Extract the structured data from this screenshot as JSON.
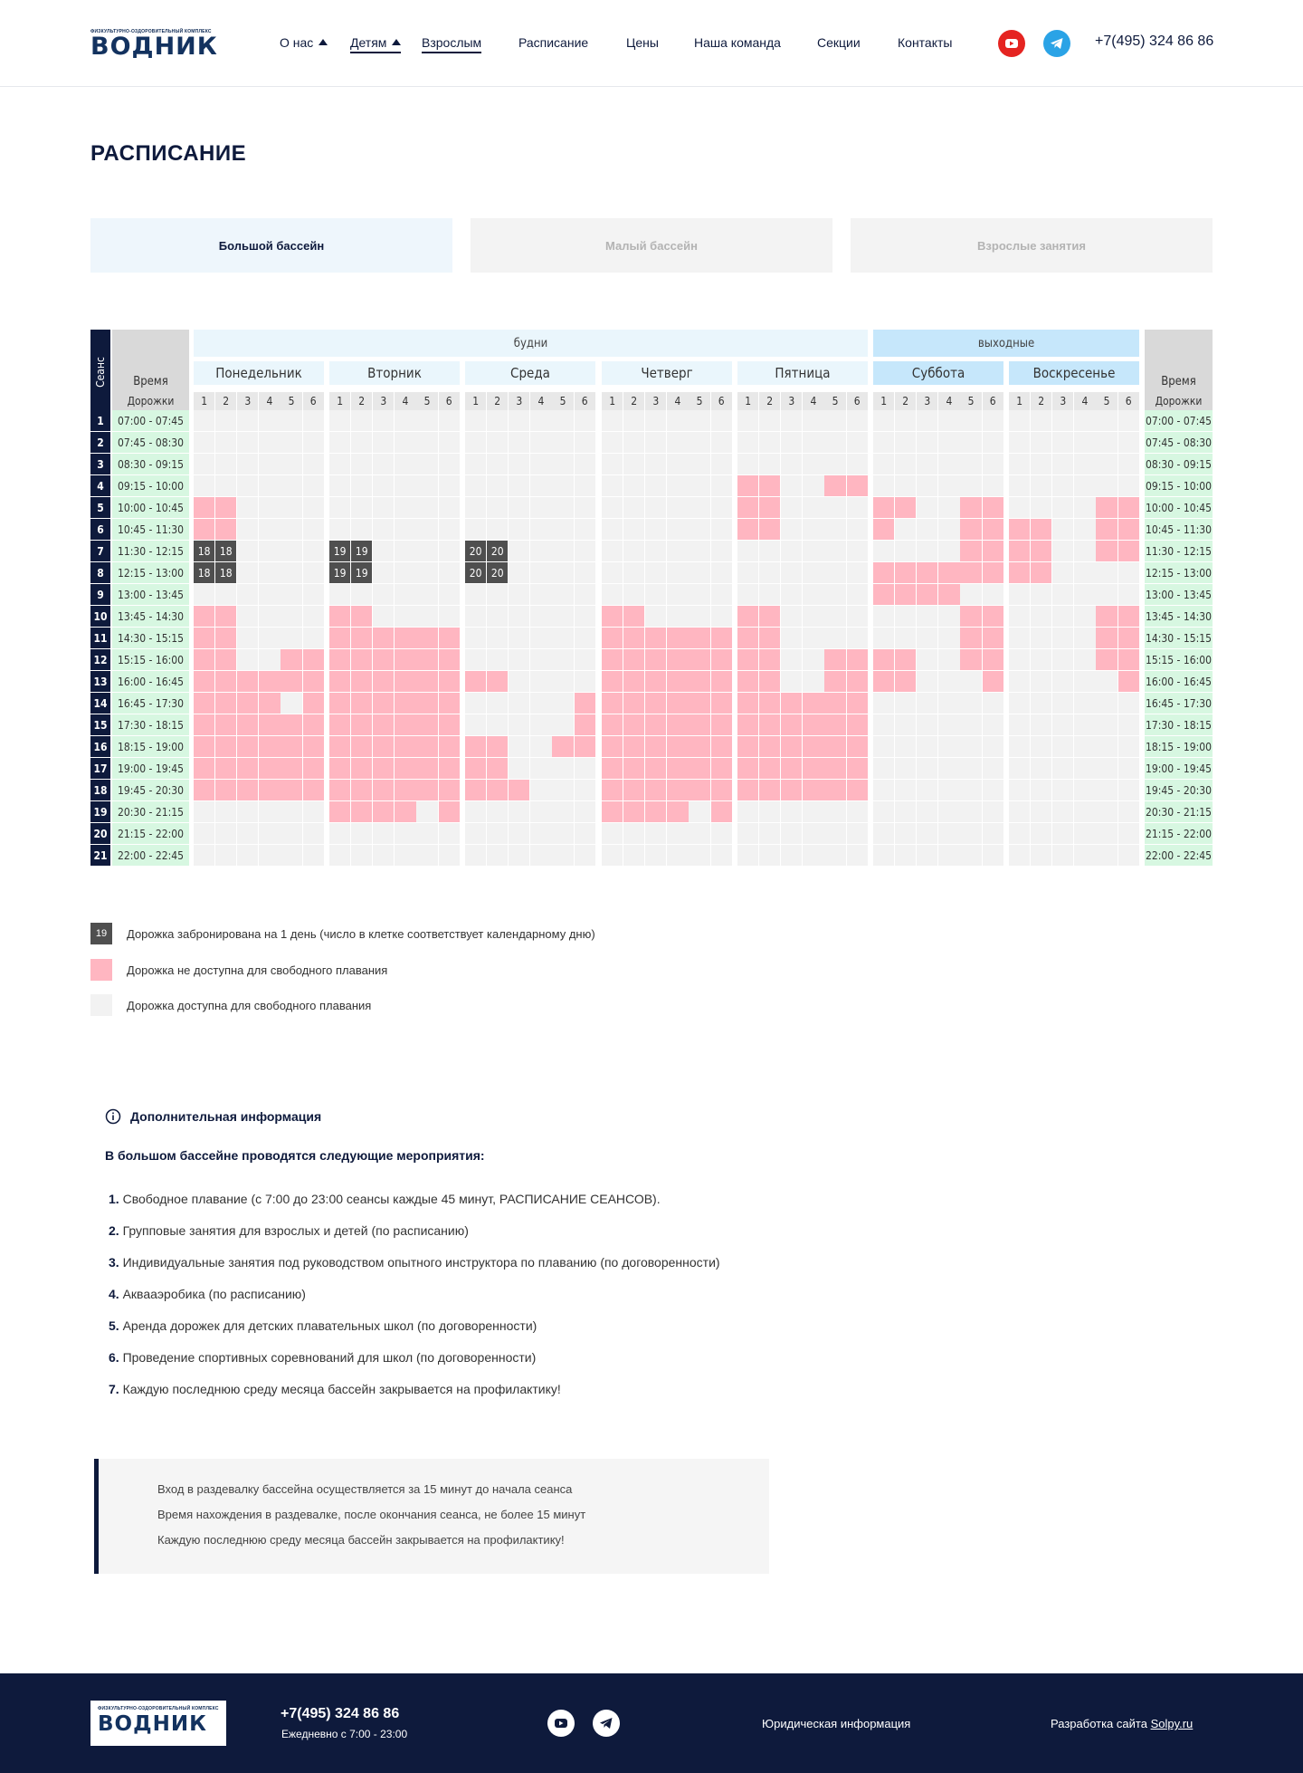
{
  "header": {
    "logo_small": "ФИЗКУЛЬТУРНО-ОЗДОРОВИТЕЛЬНЫЙ КОМПЛЕКС",
    "logo_big": "ВОДНИК",
    "nav": [
      "О нас",
      "Детям",
      "Взрослым",
      "Расписание",
      "Цены",
      "Наша команда",
      "Секции",
      "Контакты"
    ],
    "phone": "+7(495) 324 86 86",
    "social": [
      "youtube-icon",
      "telegram-icon"
    ],
    "colors": {
      "youtube": "#e52421",
      "telegram": "#2aa3e6"
    }
  },
  "page_title": "РАСПИСАНИЕ",
  "tabs": [
    {
      "label": "Большой бассейн",
      "active": true
    },
    {
      "label": "Малый бассейн",
      "active": false
    },
    {
      "label": "Взрослые занятия",
      "active": false
    }
  ],
  "schedule": {
    "seance_label": "Сеанс",
    "time_label": "Время",
    "lanes_label": "Дорожки",
    "weekdays_label": "будни",
    "weekend_label": "выходные",
    "days": [
      "Понедельник",
      "Вторник",
      "Среда",
      "Четверг",
      "Пятница",
      "Суббота",
      "Воскресенье"
    ],
    "lanes": [
      "1",
      "2",
      "3",
      "4",
      "5",
      "6"
    ],
    "seances": [
      "1",
      "2",
      "3",
      "4",
      "5",
      "6",
      "7",
      "8",
      "9",
      "10",
      "11",
      "12",
      "13",
      "14",
      "15",
      "16",
      "17",
      "18",
      "19",
      "20",
      "21"
    ],
    "times": [
      "07:00 - 07:45",
      "07:45 - 08:30",
      "08:30 - 09:15",
      "09:15 - 10:00",
      "10:00 - 10:45",
      "10:45 - 11:30",
      "11:30 - 12:15",
      "12:15 - 13:00",
      "13:00 - 13:45",
      "13:45 - 14:30",
      "14:30 - 15:15",
      "15:15 - 16:00",
      "16:00 - 16:45",
      "16:45 - 17:30",
      "17:30 - 18:15",
      "18:15 - 19:00",
      "19:00 - 19:45",
      "19:45 - 20:30",
      "20:30 - 21:15",
      "21:15 - 22:00",
      "22:00 - 22:45"
    ],
    "grid": [
      [
        "000000",
        "000000",
        "000000",
        "000000",
        "000000",
        "000000",
        "000000"
      ],
      [
        "000000",
        "000000",
        "000000",
        "000000",
        "000000",
        "000000",
        "000000"
      ],
      [
        "000000",
        "000000",
        "000000",
        "000000",
        "000000",
        "000000",
        "000000"
      ],
      [
        "000000",
        "000000",
        "000000",
        "000000",
        "110011",
        "000000",
        "000000"
      ],
      [
        "110000",
        "000000",
        "000000",
        "000000",
        "110000",
        "110011",
        "000011"
      ],
      [
        "110000",
        "000000",
        "000000",
        "000000",
        "110000",
        "100011",
        "110011"
      ],
      [
        "BB0000",
        "BB0000",
        "BB0000",
        "000000",
        "000000",
        "000011",
        "110011"
      ],
      [
        "BB0000",
        "BB0000",
        "BB0000",
        "000000",
        "000000",
        "111111",
        "110000"
      ],
      [
        "000000",
        "000000",
        "000000",
        "000000",
        "000000",
        "111100",
        "000000"
      ],
      [
        "110000",
        "110000",
        "000000",
        "110000",
        "110000",
        "000011",
        "000011"
      ],
      [
        "110000",
        "111111",
        "000000",
        "111111",
        "110000",
        "000011",
        "000011"
      ],
      [
        "110011",
        "111111",
        "000000",
        "111111",
        "110011",
        "110011",
        "000011"
      ],
      [
        "111111",
        "111111",
        "110000",
        "111111",
        "110011",
        "110001",
        "000001"
      ],
      [
        "111101",
        "111111",
        "000001",
        "111111",
        "111111",
        "000000",
        "000000"
      ],
      [
        "111111",
        "111111",
        "000001",
        "111111",
        "111111",
        "000000",
        "000000"
      ],
      [
        "111111",
        "111111",
        "110011",
        "111111",
        "111111",
        "000000",
        "000000"
      ],
      [
        "111111",
        "111111",
        "110000",
        "111111",
        "111111",
        "000000",
        "000000"
      ],
      [
        "111111",
        "111111",
        "111000",
        "111111",
        "111111",
        "000000",
        "000000"
      ],
      [
        "000000",
        "111101",
        "000000",
        "111101",
        "000000",
        "000000",
        "000000"
      ],
      [
        "000000",
        "000000",
        "000000",
        "000000",
        "000000",
        "000000",
        "000000"
      ],
      [
        "000000",
        "000000",
        "000000",
        "000000",
        "000000",
        "000000",
        "000000"
      ]
    ],
    "booked": [
      {
        "row": 6,
        "day": 0,
        "label": "18"
      },
      {
        "row": 7,
        "day": 0,
        "label": "18"
      },
      {
        "row": 6,
        "day": 1,
        "label": "19"
      },
      {
        "row": 7,
        "day": 1,
        "label": "19"
      },
      {
        "row": 6,
        "day": 2,
        "label": "20"
      },
      {
        "row": 7,
        "day": 2,
        "label": "20"
      }
    ],
    "colors": {
      "booked": "#4f4f4f",
      "busy": "#ffb6c1",
      "free": "#f2f2f2",
      "time": "#d7f7e1",
      "header_gray": "#d9d9d9",
      "weekday": "#eaf6fc",
      "weekend": "#c6e7fb",
      "seance_bar": "#0e1a3c"
    }
  },
  "legend": [
    {
      "sample": "19",
      "text": "Дорожка забронирована на 1 день (число в клетке соответствует календарному дню)"
    },
    {
      "sample": "",
      "text": "Дорожка не доступна для свободного плавания"
    },
    {
      "sample": "",
      "text": "Дорожка доступна для свободного плавания"
    }
  ],
  "info": {
    "title": "Дополнительная информация",
    "subtitle": "В большом бассейне проводятся следующие мероприятия:",
    "items": [
      {
        "num": "1.",
        "text": "Свободное плавание (с 7:00 до 23:00 сеансы каждые 45 минут, РАСПИСАНИЕ СЕАНСОВ)."
      },
      {
        "num": "2.",
        "text": "Групповые занятия для взрослых и детей (по расписанию)"
      },
      {
        "num": "3.",
        "text": "Индивидуальные занятия под руководством опытного инструктора по плаванию (по договоренности)"
      },
      {
        "num": "4.",
        "text": "Аквааэробика (по расписанию)"
      },
      {
        "num": "5.",
        "text": "Аренда дорожек для детских плавательных школ (по договоренности)"
      },
      {
        "num": "6.",
        "text": "Проведение спортивных соревнований для школ (по договоренности)"
      },
      {
        "num": "7.",
        "text": "Каждую последнюю среду месяца бассейн закрывается на профилактику!"
      }
    ]
  },
  "note": [
    "Вход в раздевалку бассейна осуществляется за 15 минут до начала сеанса",
    "Время нахождения в раздевалке, после окончания сеанса, не более 15 минут",
    "Каждую последнюю среду месяца бассейн закрывается на профилактику!"
  ],
  "footer": {
    "logo_small": "ФИЗКУЛЬТУРНО-ОЗДОРОВИТЕЛЬНЫЙ КОМПЛЕКС",
    "logo_big": "ВОДНИК",
    "phone": "+7(495) 324 86 86",
    "hours": "Ежедневно с 7:00 - 23:00",
    "legal": "Юридическая информация",
    "dev_prefix": "Разработка сайта",
    "dev_link": "Solpy.ru"
  }
}
